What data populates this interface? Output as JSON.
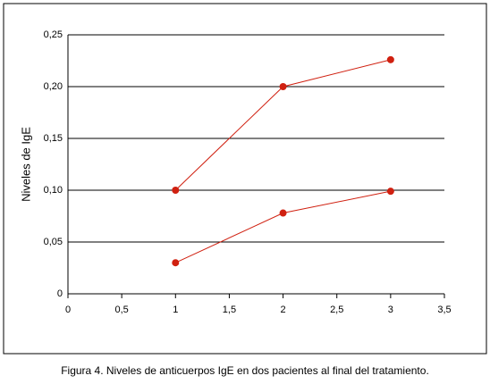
{
  "chart_data": {
    "type": "line",
    "y_label": "Niveles de IgE",
    "caption": "Figura 4. Niveles de anticuerpos IgE en dos pacientes al final del tratamiento.",
    "x": [
      1,
      2,
      3
    ],
    "series": [
      {
        "color": "#d02010",
        "values": [
          0.1,
          0.2,
          0.226
        ]
      },
      {
        "color": "#d02010",
        "values": [
          0.03,
          0.078,
          0.099
        ]
      }
    ],
    "xlim": [
      0,
      3.5
    ],
    "xticks": [
      0,
      {
        "value": 0.5,
        "label": "0,5"
      },
      1,
      {
        "value": 1.5,
        "label": "1,5"
      },
      2,
      {
        "value": 2.5,
        "label": "2,5"
      },
      3,
      {
        "value": 3.5,
        "label": "3,5"
      }
    ],
    "ylim": [
      0,
      0.25
    ],
    "yticks": [
      0,
      {
        "value": 0.05,
        "label": "0,05"
      },
      {
        "value": 0.1,
        "label": "0,10"
      },
      {
        "value": 0.15,
        "label": "0,15"
      },
      {
        "value": 0.2,
        "label": "0,20"
      },
      {
        "value": 0.25,
        "label": "0,25"
      }
    ],
    "grid": true
  }
}
